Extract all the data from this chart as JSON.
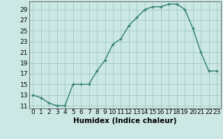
{
  "x": [
    0,
    1,
    2,
    3,
    4,
    5,
    6,
    7,
    8,
    9,
    10,
    11,
    12,
    13,
    14,
    15,
    16,
    17,
    18,
    19,
    20,
    21,
    22,
    23
  ],
  "y": [
    13,
    12.5,
    11.5,
    11,
    11,
    15,
    15,
    15,
    17.5,
    19.5,
    22.5,
    23.5,
    26,
    27.5,
    29,
    29.5,
    29.5,
    30,
    30,
    29,
    25.5,
    21,
    17.5,
    17.5
  ],
  "xlabel": "Humidex (Indice chaleur)",
  "ylim": [
    10.5,
    30.5
  ],
  "xlim": [
    -0.5,
    23.5
  ],
  "yticks": [
    11,
    13,
    15,
    17,
    19,
    21,
    23,
    25,
    27,
    29
  ],
  "xticks": [
    0,
    1,
    2,
    3,
    4,
    5,
    6,
    7,
    8,
    9,
    10,
    11,
    12,
    13,
    14,
    15,
    16,
    17,
    18,
    19,
    20,
    21,
    22,
    23
  ],
  "xtick_labels": [
    "0",
    "1",
    "2",
    "3",
    "4",
    "5",
    "6",
    "7",
    "8",
    "9",
    "10",
    "11",
    "12",
    "13",
    "14",
    "15",
    "16",
    "17",
    "18",
    "19",
    "20",
    "21",
    "22",
    "23"
  ],
  "line_color": "#2d7d6e",
  "marker": "+",
  "bg_color": "#cce8e4",
  "grid_color": "#a0c8c4",
  "tick_label_fontsize": 6.5,
  "xlabel_fontsize": 7.5
}
